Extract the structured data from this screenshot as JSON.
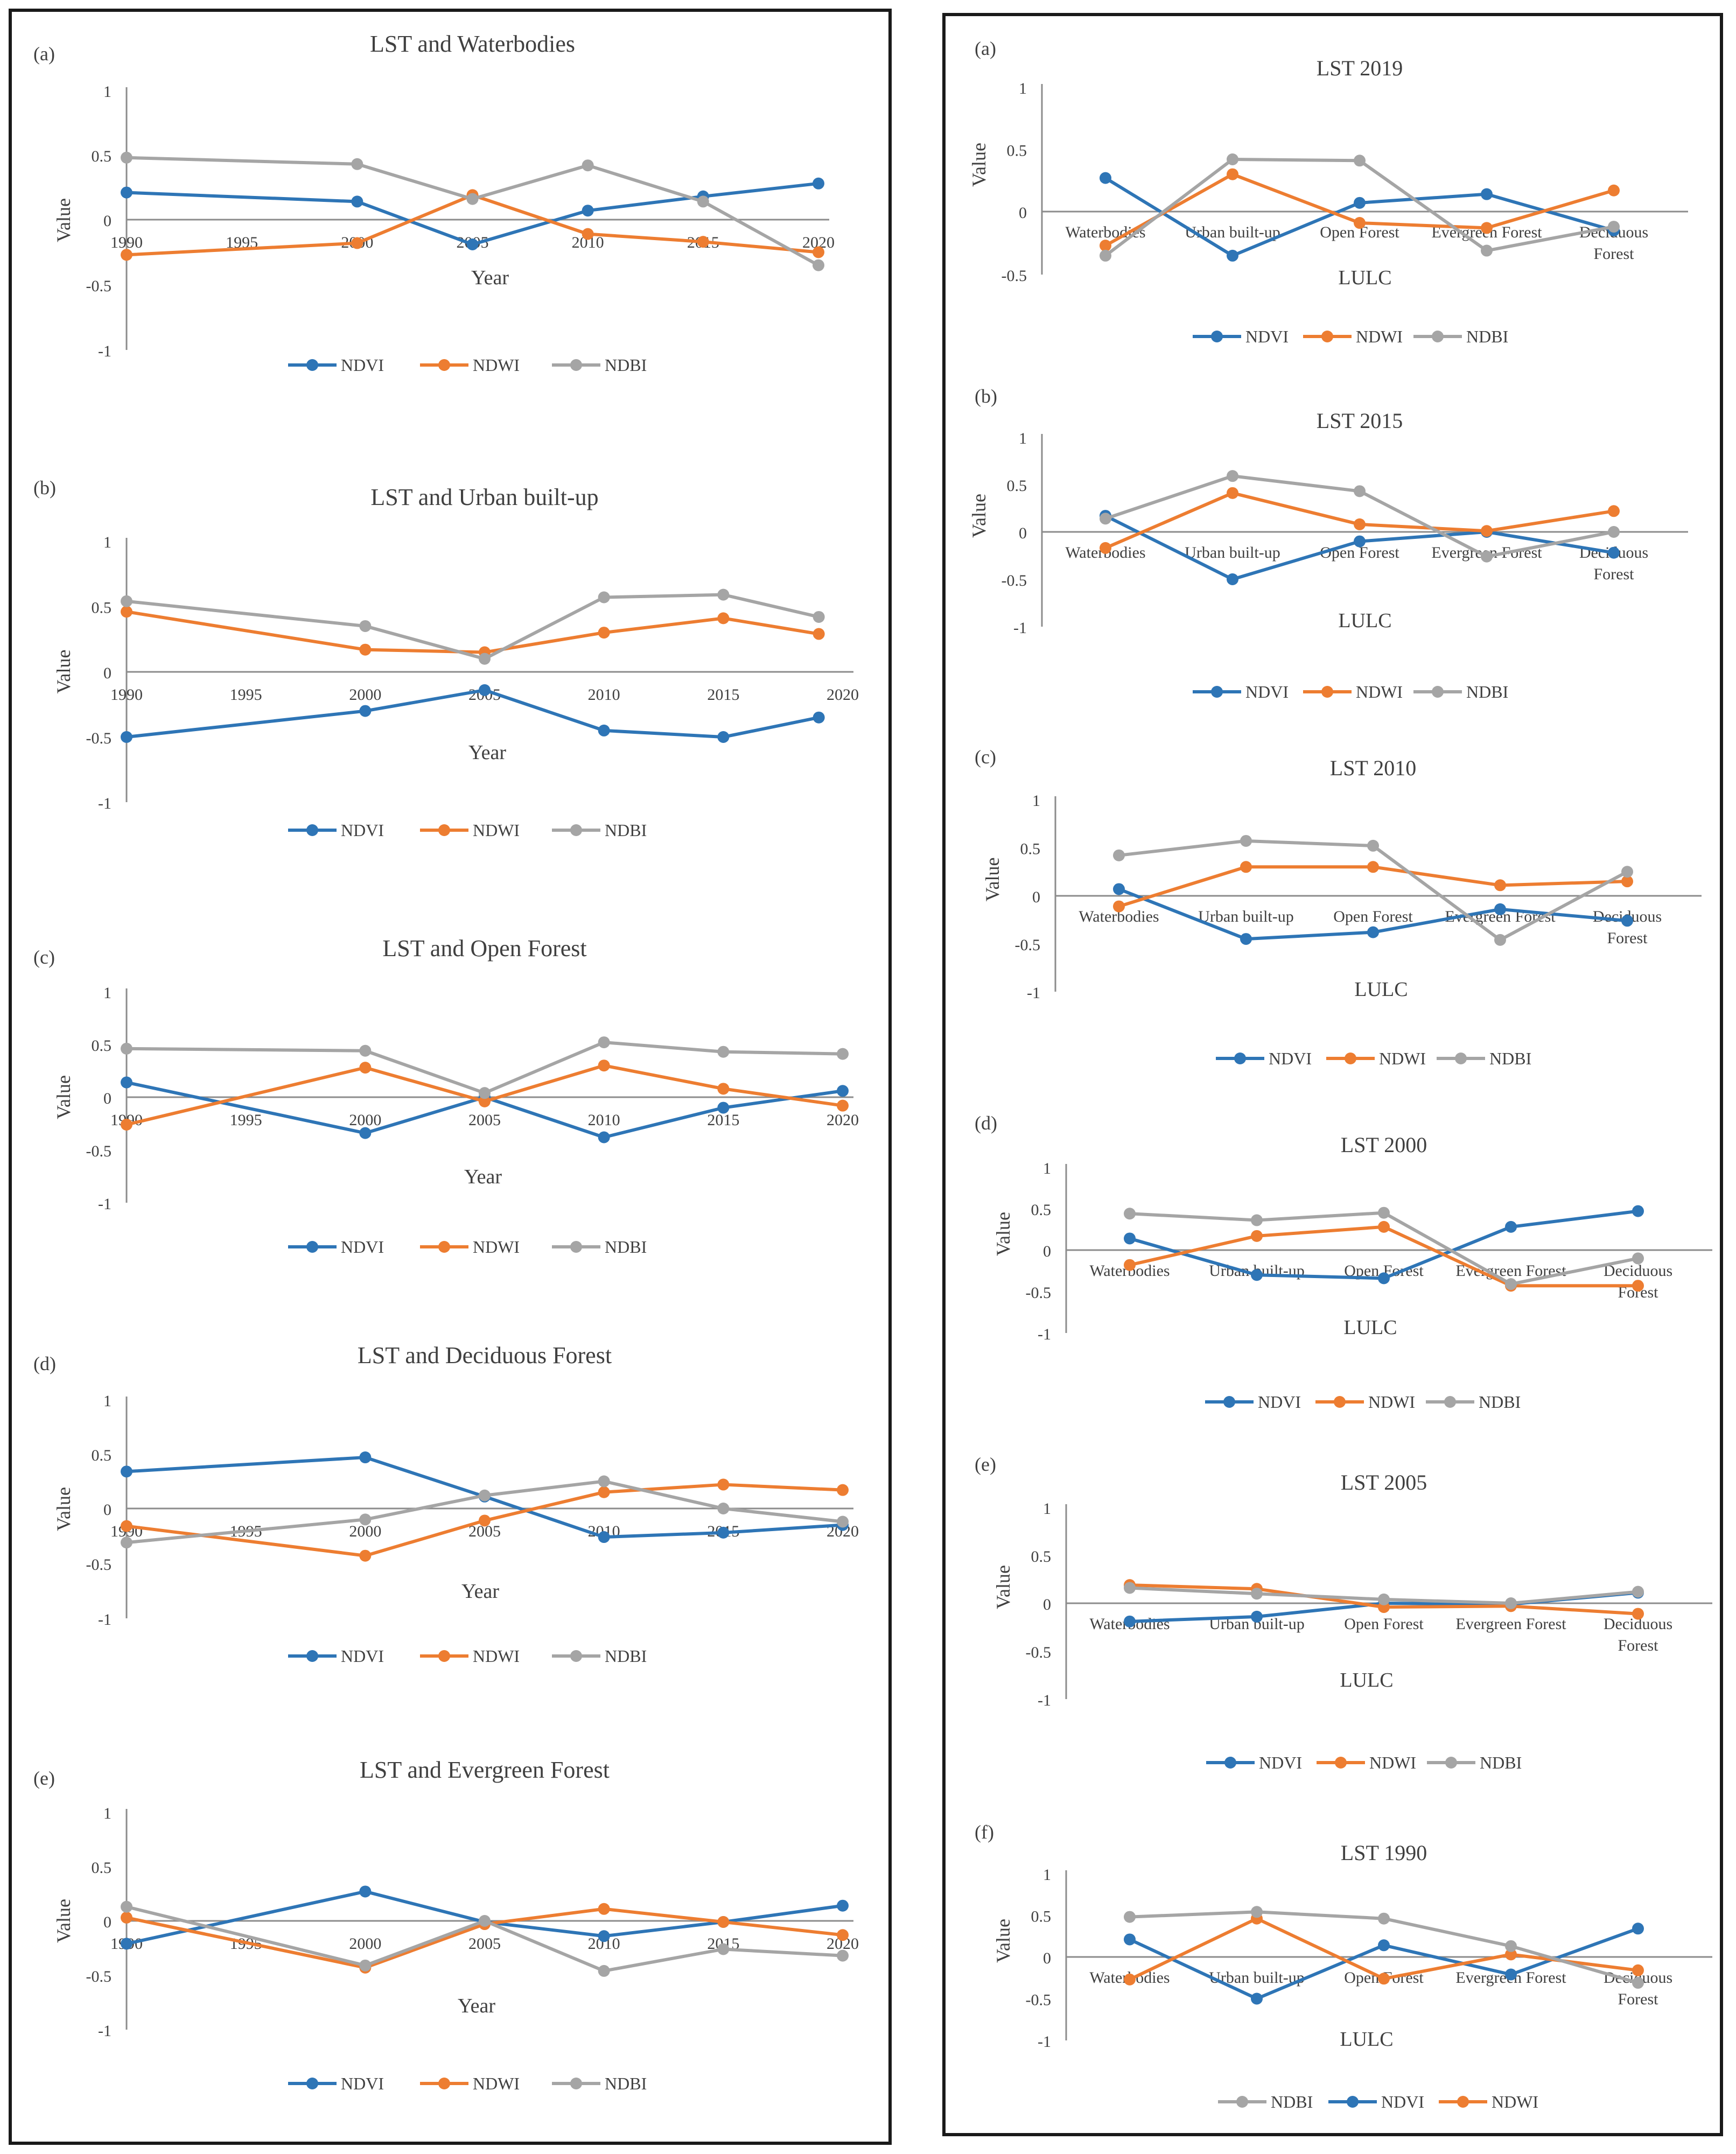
{
  "colors": {
    "NDVI": "#2E75B6",
    "NDWI": "#ED7D31",
    "NDBI": "#A5A5A5",
    "axis": "#8C8C8C",
    "text": "#404040"
  },
  "chart_data": [
    {
      "type": "line",
      "panel_label": "(a)",
      "title": "LST and Waterbodies",
      "xlabel": "Year",
      "ylabel": "Value",
      "x": [
        1990,
        2000,
        2005,
        2010,
        2015,
        2020
      ],
      "xticks": [
        "1990",
        "1995",
        "2000",
        "2005",
        "2010",
        "2015",
        "2020"
      ],
      "yticks": [
        "1",
        "0.5",
        "0",
        "-0.5",
        "-1"
      ],
      "ylim": [
        -1,
        1
      ],
      "legend": [
        "NDVI",
        "NDWI",
        "NDBI"
      ],
      "series": [
        {
          "name": "NDVI",
          "values": [
            0.21,
            0.14,
            -0.19,
            0.07,
            0.18,
            0.28
          ]
        },
        {
          "name": "NDWI",
          "values": [
            -0.27,
            -0.18,
            0.19,
            -0.11,
            -0.17,
            -0.25
          ]
        },
        {
          "name": "NDBI",
          "values": [
            0.48,
            0.43,
            0.16,
            0.42,
            0.14,
            -0.35
          ]
        }
      ]
    },
    {
      "type": "line",
      "panel_label": "(b)",
      "title": "LST and Urban built-up",
      "xlabel": "Year",
      "ylabel": "Value",
      "x": [
        1990,
        2000,
        2005,
        2010,
        2015,
        2019
      ],
      "xticks": [
        "1990",
        "1995",
        "2000",
        "2005",
        "2010",
        "2015",
        "2020"
      ],
      "yticks": [
        "1",
        "0.5",
        "0",
        "-0.5",
        "-1"
      ],
      "ylim": [
        -1,
        1
      ],
      "legend": [
        "NDVI",
        "NDWI",
        "NDBI"
      ],
      "series": [
        {
          "name": "NDVI",
          "values": [
            -0.5,
            -0.3,
            -0.14,
            -0.45,
            -0.5,
            -0.35
          ]
        },
        {
          "name": "NDWI",
          "values": [
            0.46,
            0.17,
            0.15,
            0.3,
            0.41,
            0.29
          ]
        },
        {
          "name": "NDBI",
          "values": [
            0.54,
            0.35,
            0.1,
            0.57,
            0.59,
            0.42
          ]
        }
      ]
    },
    {
      "type": "line",
      "panel_label": "(c)",
      "title": "LST and Open Forest",
      "xlabel": "Year",
      "ylabel": "Value",
      "x": [
        1990,
        2000,
        2005,
        2010,
        2015,
        2020
      ],
      "xticks": [
        "1990",
        "1995",
        "2000",
        "2005",
        "2010",
        "2015",
        "2020"
      ],
      "yticks": [
        "1",
        "0.5",
        "0",
        "-0.5",
        "-1"
      ],
      "ylim": [
        -1,
        1
      ],
      "legend": [
        "NDVI",
        "NDWI",
        "NDBI"
      ],
      "series": [
        {
          "name": "NDVI",
          "values": [
            0.14,
            -0.34,
            0.0,
            -0.38,
            -0.1,
            0.06
          ]
        },
        {
          "name": "NDWI",
          "values": [
            -0.26,
            0.28,
            -0.04,
            0.3,
            0.08,
            -0.08
          ]
        },
        {
          "name": "NDBI",
          "values": [
            0.46,
            0.44,
            0.04,
            0.52,
            0.43,
            0.41
          ]
        }
      ]
    },
    {
      "type": "line",
      "panel_label": "(d)",
      "title": "LST and Deciduous Forest",
      "xlabel": "Year",
      "ylabel": "Value",
      "x": [
        1990,
        2000,
        2005,
        2010,
        2015,
        2020
      ],
      "xticks": [
        "1990",
        "1995",
        "2000",
        "2005",
        "2010",
        "2015",
        "2020"
      ],
      "yticks": [
        "1",
        "0.5",
        "0",
        "-0.5",
        "-1"
      ],
      "ylim": [
        -1,
        1
      ],
      "legend": [
        "NDVI",
        "NDWI",
        "NDBI"
      ],
      "series": [
        {
          "name": "NDVI",
          "values": [
            0.34,
            0.47,
            0.11,
            -0.26,
            -0.22,
            -0.15
          ]
        },
        {
          "name": "NDWI",
          "values": [
            -0.16,
            -0.43,
            -0.11,
            0.15,
            0.22,
            0.17
          ]
        },
        {
          "name": "NDBI",
          "values": [
            -0.31,
            -0.1,
            0.12,
            0.25,
            0.0,
            -0.12
          ]
        }
      ]
    },
    {
      "type": "line",
      "panel_label": "(e)",
      "title": "LST and Evergreen Forest",
      "xlabel": "Year",
      "ylabel": "Value",
      "x": [
        1990,
        2000,
        2005,
        2010,
        2015,
        2020
      ],
      "xticks": [
        "1990",
        "1995",
        "2000",
        "2005",
        "2010",
        "2015",
        "2020"
      ],
      "yticks": [
        "1",
        "0.5",
        "0",
        "-0.5",
        "-1"
      ],
      "ylim": [
        -1,
        1
      ],
      "legend": [
        "NDVI",
        "NDWI",
        "NDBI"
      ],
      "series": [
        {
          "name": "NDVI",
          "values": [
            -0.21,
            0.27,
            -0.01,
            -0.14,
            -0.01,
            0.14
          ]
        },
        {
          "name": "NDWI",
          "values": [
            0.03,
            -0.43,
            -0.03,
            0.11,
            -0.01,
            -0.13
          ]
        },
        {
          "name": "NDBI",
          "values": [
            0.13,
            -0.41,
            0.0,
            -0.46,
            -0.26,
            -0.32
          ]
        }
      ]
    },
    {
      "type": "line",
      "panel_label": "(a)",
      "title": "LST 2019",
      "xlabel": "LULC",
      "ylabel": "Value",
      "categories": [
        "Waterbodies",
        "Urban built-up",
        "Open Forest",
        "Evergreen Forest",
        "Deciduous Forest"
      ],
      "yticks": [
        "1",
        "0.5",
        "0",
        "-0.5"
      ],
      "ylim": [
        -0.5,
        1
      ],
      "legend": [
        "NDVI",
        "NDWI",
        "NDBI"
      ],
      "series": [
        {
          "name": "NDVI",
          "values": [
            0.27,
            -0.35,
            0.07,
            0.14,
            -0.15
          ]
        },
        {
          "name": "NDWI",
          "values": [
            -0.27,
            0.3,
            -0.09,
            -0.13,
            0.17
          ]
        },
        {
          "name": "NDBI",
          "values": [
            -0.35,
            0.42,
            0.41,
            -0.31,
            -0.12
          ]
        }
      ]
    },
    {
      "type": "line",
      "panel_label": "(b)",
      "title": "LST 2015",
      "xlabel": "LULC",
      "ylabel": "Value",
      "categories": [
        "Waterbodies",
        "Urban built-up",
        "Open Forest",
        "Evergreen Forest",
        "Deciduous Forest"
      ],
      "yticks": [
        "1",
        "0.5",
        "0",
        "-0.5",
        "-1"
      ],
      "ylim": [
        -1,
        1
      ],
      "legend": [
        "NDVI",
        "NDWI",
        "NDBI"
      ],
      "series": [
        {
          "name": "NDVI",
          "values": [
            0.17,
            -0.5,
            -0.1,
            0.0,
            -0.22
          ]
        },
        {
          "name": "NDWI",
          "values": [
            -0.17,
            0.41,
            0.08,
            0.01,
            0.22
          ]
        },
        {
          "name": "NDBI",
          "values": [
            0.14,
            0.59,
            0.43,
            -0.26,
            0.0
          ]
        }
      ]
    },
    {
      "type": "line",
      "panel_label": "(c)",
      "title": "LST 2010",
      "xlabel": "LULC",
      "ylabel": "Value",
      "categories": [
        "Waterbodies",
        "Urban built-up",
        "Open Forest",
        "Evergreen Forest",
        "Deciduous Forest"
      ],
      "yticks": [
        "1",
        "0.5",
        "0",
        "-0.5",
        "-1"
      ],
      "ylim": [
        -1,
        1
      ],
      "legend": [
        "NDVI",
        "NDWI",
        "NDBI"
      ],
      "series": [
        {
          "name": "NDVI",
          "values": [
            0.07,
            -0.45,
            -0.38,
            -0.14,
            -0.26
          ]
        },
        {
          "name": "NDWI",
          "values": [
            -0.11,
            0.3,
            0.3,
            0.11,
            0.15
          ]
        },
        {
          "name": "NDBI",
          "values": [
            0.42,
            0.57,
            0.52,
            -0.46,
            0.25
          ]
        }
      ]
    },
    {
      "type": "line",
      "panel_label": "(d)",
      "title": "LST 2000",
      "xlabel": "LULC",
      "ylabel": "Value",
      "categories": [
        "Waterbodies",
        "Urban built-up",
        "Open Forest",
        "Evergreen Forest",
        "Deciduous Forest"
      ],
      "yticks": [
        "1",
        "0.5",
        "0",
        "-0.5",
        "-1"
      ],
      "ylim": [
        -1,
        1
      ],
      "legend": [
        "NDVI",
        "NDWI",
        "NDBI"
      ],
      "series": [
        {
          "name": "NDVI",
          "values": [
            0.14,
            -0.3,
            -0.34,
            0.28,
            0.47
          ]
        },
        {
          "name": "NDWI",
          "values": [
            -0.18,
            0.17,
            0.28,
            -0.43,
            -0.43
          ]
        },
        {
          "name": "NDBI",
          "values": [
            0.44,
            0.36,
            0.45,
            -0.41,
            -0.1
          ]
        }
      ]
    },
    {
      "type": "line",
      "panel_label": "(e)",
      "title": "LST 2005",
      "xlabel": "LULC",
      "ylabel": "Value",
      "categories": [
        "Waterbodies",
        "Urban built-up",
        "Open Forest",
        "Evergreen Forest",
        "Deciduous Forest"
      ],
      "yticks": [
        "1",
        "0.5",
        "0",
        "-0.5",
        "-1"
      ],
      "ylim": [
        -1,
        1
      ],
      "legend": [
        "NDVI",
        "NDWI",
        "NDBI"
      ],
      "series": [
        {
          "name": "NDVI",
          "values": [
            -0.19,
            -0.14,
            0.0,
            -0.01,
            0.11
          ]
        },
        {
          "name": "NDWI",
          "values": [
            0.19,
            0.15,
            -0.04,
            -0.03,
            -0.11
          ]
        },
        {
          "name": "NDBI",
          "values": [
            0.16,
            0.1,
            0.04,
            0.0,
            0.12
          ]
        }
      ]
    },
    {
      "type": "line",
      "panel_label": "(f)",
      "title": "LST 1990",
      "xlabel": "LULC",
      "ylabel": "Value",
      "categories": [
        "Waterbodies",
        "Urban built-up",
        "Open Forest",
        "Evergreen Forest",
        "Deciduous Forest"
      ],
      "yticks": [
        "1",
        "0.5",
        "0",
        "-0.5",
        "-1"
      ],
      "ylim": [
        -1,
        1
      ],
      "legend": [
        "NDBI",
        "NDVI",
        "NDWI"
      ],
      "series": [
        {
          "name": "NDVI",
          "values": [
            0.21,
            -0.5,
            0.14,
            -0.21,
            0.34
          ]
        },
        {
          "name": "NDWI",
          "values": [
            -0.27,
            0.46,
            -0.26,
            0.03,
            -0.16
          ]
        },
        {
          "name": "NDBI",
          "values": [
            0.48,
            0.54,
            0.46,
            0.13,
            -0.31
          ]
        }
      ]
    }
  ]
}
